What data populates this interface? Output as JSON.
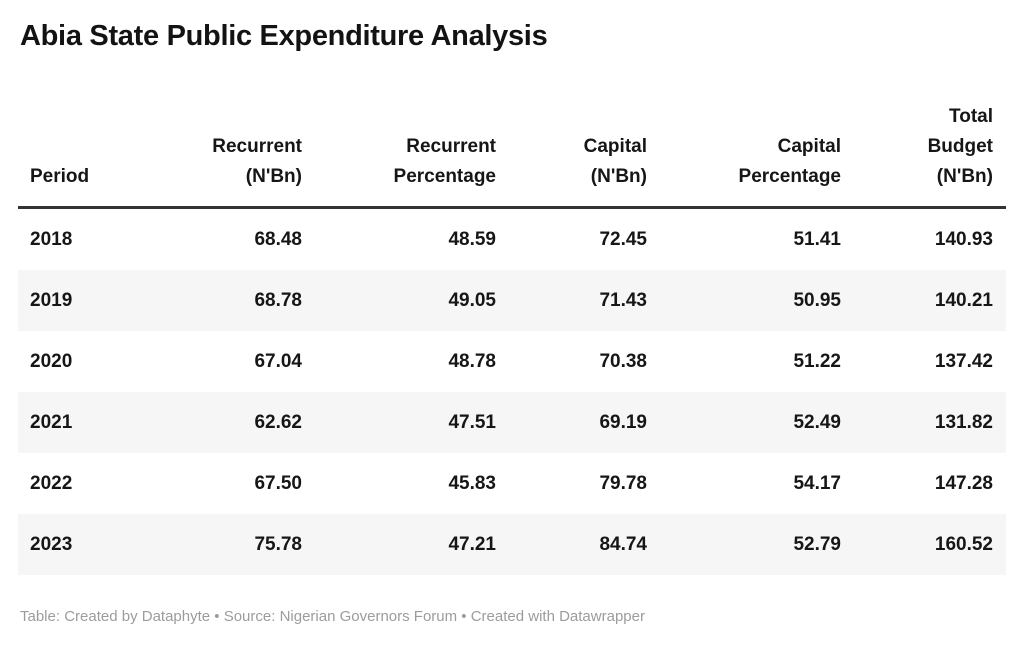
{
  "title": "Abia State Public Expenditure Analysis",
  "style": {
    "background": "#ffffff",
    "header_rule_color": "#333333",
    "row_stripe_color": "#f6f6f6",
    "text_color": "#161616",
    "footer_text_color": "#9c9c9c"
  },
  "table": {
    "columns": [
      {
        "label": "Period",
        "align": "left",
        "lines": [
          "Period"
        ]
      },
      {
        "label": "Recurrent (N'Bn)",
        "align": "right",
        "lines": [
          "Recurrent",
          "(N'Bn)"
        ]
      },
      {
        "label": "Recurrent Percentage",
        "align": "right",
        "lines": [
          "Recurrent",
          "Percentage"
        ]
      },
      {
        "label": "Capital (N'Bn)",
        "align": "right",
        "lines": [
          "Capital",
          "(N'Bn)"
        ]
      },
      {
        "label": "Capital Percentage",
        "align": "right",
        "lines": [
          "Capital",
          "Percentage"
        ]
      },
      {
        "label": "Total Budget (N'Bn)",
        "align": "right",
        "lines": [
          "Total",
          "Budget",
          "(N'Bn)"
        ]
      }
    ],
    "rows": [
      {
        "cells": [
          "2018",
          "68.48",
          "48.59",
          "72.45",
          "51.41",
          "140.93"
        ]
      },
      {
        "cells": [
          "2019",
          "68.78",
          "49.05",
          "71.43",
          "50.95",
          "140.21"
        ]
      },
      {
        "cells": [
          "2020",
          "67.04",
          "48.78",
          "70.38",
          "51.22",
          "137.42"
        ]
      },
      {
        "cells": [
          "2021",
          "62.62",
          "47.51",
          "69.19",
          "52.49",
          "131.82"
        ]
      },
      {
        "cells": [
          "2022",
          "67.50",
          "45.83",
          "79.78",
          "54.17",
          "147.28"
        ]
      },
      {
        "cells": [
          "2023",
          "75.78",
          "47.21",
          "84.74",
          "52.79",
          "160.52"
        ]
      }
    ]
  },
  "footer": {
    "text": "Table: Created by Dataphyte • Source: Nigerian Governors Forum • Created with Datawrapper"
  },
  "chart_data": {
    "type": "table",
    "title": "Abia State Public Expenditure Analysis",
    "columns": [
      "Period",
      "Recurrent (N'Bn)",
      "Recurrent Percentage",
      "Capital (N'Bn)",
      "Capital Percentage",
      "Total Budget (N'Bn)"
    ],
    "rows": [
      [
        2018,
        68.48,
        48.59,
        72.45,
        51.41,
        140.93
      ],
      [
        2019,
        68.78,
        49.05,
        71.43,
        50.95,
        140.21
      ],
      [
        2020,
        67.04,
        48.78,
        70.38,
        51.22,
        137.42
      ],
      [
        2021,
        62.62,
        47.51,
        69.19,
        52.49,
        131.82
      ],
      [
        2022,
        67.5,
        45.83,
        79.78,
        54.17,
        147.28
      ],
      [
        2023,
        75.78,
        47.21,
        84.74,
        52.79,
        160.52
      ]
    ],
    "notes": {
      "source": "Nigerian Governors Forum",
      "creator": "Dataphyte",
      "tool": "Datawrapper",
      "row_striping": "even rows shaded"
    }
  }
}
